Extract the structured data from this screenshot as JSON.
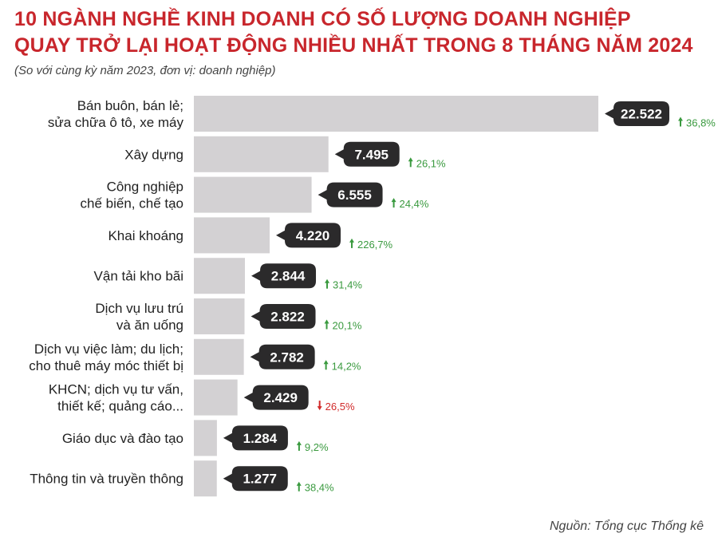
{
  "header": {
    "title_line1": "10 NGÀNH NGHỀ KINH DOANH CÓ SỐ LƯỢNG DOANH NGHIỆP",
    "title_line2": "QUAY TRỞ LẠI HOẠT ĐỘNG NHIỀU NHẤT TRONG 8 THÁNG NĂM 2024",
    "subtitle": "(So với cùng kỳ năm 2023, đơn vị: doanh nghiệp)"
  },
  "footer": {
    "source": "Nguồn: Tổng cục Thống kê"
  },
  "colors": {
    "title": "#c8262c",
    "bar": "#d3d1d3",
    "bubble": "#2b2a2b",
    "up": "#3a9a3f",
    "down": "#d12a2a"
  },
  "chart_data": {
    "type": "bar",
    "orientation": "horizontal",
    "categories": [
      [
        "Bán buôn, bán lẻ;",
        "sửa chữa ô tô, xe máy"
      ],
      [
        "Xây dựng"
      ],
      [
        "Công nghiệp",
        "chế biến, chế tạo"
      ],
      [
        "Khai khoáng"
      ],
      [
        "Vận tải kho bãi"
      ],
      [
        "Dịch vụ lưu trú",
        "và ăn uống"
      ],
      [
        "Dịch vụ việc làm; du lịch;",
        "cho thuê máy móc thiết bị"
      ],
      [
        "KHCN; dịch vụ tư vấn,",
        "thiết kế; quảng cáo..."
      ],
      [
        "Giáo dục và đào tạo"
      ],
      [
        "Thông tin và truyền thông"
      ]
    ],
    "values": [
      22522,
      7495,
      6555,
      4220,
      2844,
      2822,
      2782,
      2429,
      1284,
      1277
    ],
    "value_labels": [
      "22.522",
      "7.495",
      "6.555",
      "4.220",
      "2.844",
      "2.822",
      "2.782",
      "2.429",
      "1.284",
      "1.277"
    ],
    "change_labels": [
      "36,8%",
      "26,1%",
      "24,4%",
      "226,7%",
      "31,4%",
      "20,1%",
      "14,2%",
      "26,5%",
      "9,2%",
      "38,4%"
    ],
    "change_direction": [
      "up",
      "up",
      "up",
      "up",
      "up",
      "up",
      "up",
      "down",
      "up",
      "up"
    ],
    "xlim": [
      0,
      22522
    ]
  }
}
